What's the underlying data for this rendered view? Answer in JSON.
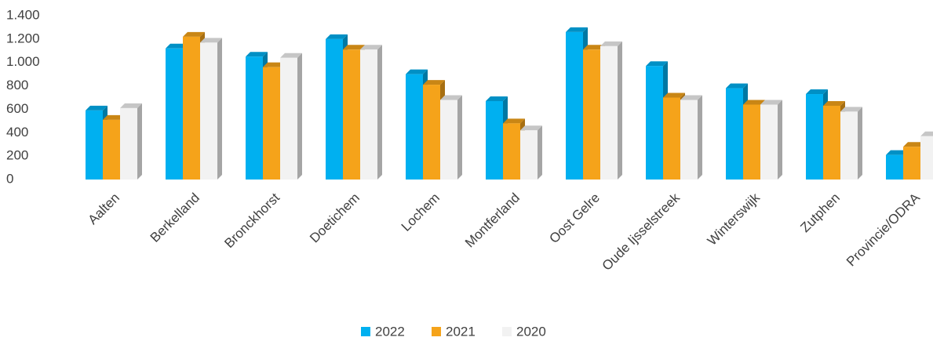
{
  "chart_data": {
    "type": "bar3d",
    "categories": [
      "Aalten",
      "Berkelland",
      "Bronckhorst",
      "Doetichem",
      "Lochem",
      "Montferland",
      "Oost Gelre",
      "Oude Ijsselstreek",
      "Winterswijk",
      "Zutphen",
      "Provincie/ODRA"
    ],
    "series": [
      {
        "name": "2022",
        "color": "#00b0f0",
        "values": [
          590,
          1120,
          1050,
          1200,
          900,
          670,
          1260,
          970,
          780,
          730,
          210
        ]
      },
      {
        "name": "2021",
        "color": "#f5a31a",
        "values": [
          510,
          1220,
          960,
          1110,
          810,
          480,
          1110,
          700,
          640,
          630,
          280
        ]
      },
      {
        "name": "2020",
        "color": "#f2f2f2",
        "values": [
          610,
          1170,
          1040,
          1110,
          680,
          420,
          1140,
          680,
          640,
          580,
          370
        ]
      }
    ],
    "ylim": [
      0,
      1400
    ],
    "yticks": [
      0,
      200,
      400,
      600,
      800,
      {
        "value": 1000,
        "label": "1.000"
      },
      {
        "value": 1200,
        "label": "1.200"
      },
      {
        "value": 1400,
        "label": "1.400"
      }
    ],
    "grid": false
  }
}
